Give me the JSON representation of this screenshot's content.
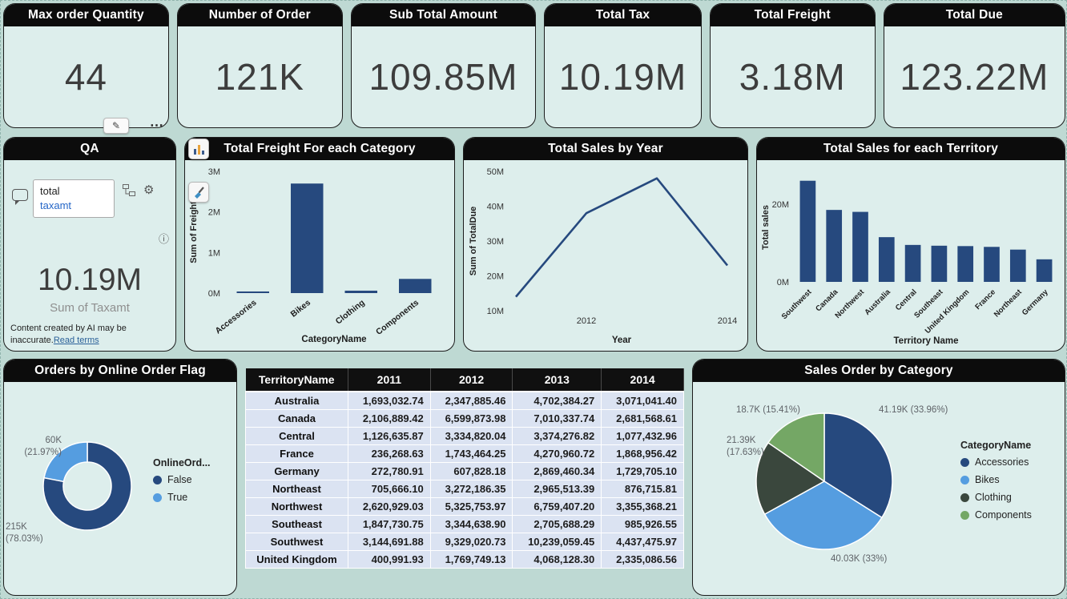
{
  "kpis": [
    {
      "title": "Max order Quantity",
      "value": "44"
    },
    {
      "title": "Number of Order",
      "value": "121K"
    },
    {
      "title": "Sub Total Amount",
      "value": "109.85M"
    },
    {
      "title": "Total Tax",
      "value": "10.19M"
    },
    {
      "title": "Total Freight",
      "value": "3.18M"
    },
    {
      "title": "Total Due",
      "value": "123.22M"
    }
  ],
  "qa": {
    "title": "QA",
    "query_line1": "total",
    "query_line2": "taxamt",
    "value": "10.19M",
    "value_label": "Sum of Taxamt",
    "disclaimer": "Content created by AI may be inaccurate.",
    "read_terms": "Read terms"
  },
  "colors": {
    "page_bg": "#bed9d3",
    "card_bg": "#ddeeec",
    "header_bg": "#0c0c0c",
    "navy": "#26497e",
    "light_blue": "#559de0",
    "green": "#74a765",
    "dark_sage": "#3a473d",
    "table_row": "#dbe3f2"
  },
  "chart_data": [
    {
      "id": "freight",
      "type": "bar",
      "title": "Total Freight For each Category",
      "categories": [
        "Accessories",
        "Bikes",
        "Clothing",
        "Components"
      ],
      "values": [
        0.04,
        2.7,
        0.06,
        0.35
      ],
      "unit": "M",
      "ylabel": "Sum of Freight",
      "xlabel": "CategoryName",
      "ylim": [
        0,
        3
      ],
      "yticks": [
        0,
        1,
        2,
        3
      ],
      "color": "#26497e"
    },
    {
      "id": "sales-year",
      "type": "line",
      "title": "Total Sales by Year",
      "x": [
        2011,
        2012,
        2013,
        2014
      ],
      "values": [
        14,
        38,
        48,
        23
      ],
      "unit": "M",
      "ylabel": "Sum of TotalDue",
      "xlabel": "Year",
      "ylim": [
        10,
        50
      ],
      "yticks": [
        10,
        20,
        30,
        40,
        50
      ],
      "xticks": [
        2012,
        2014
      ],
      "color": "#26497e"
    },
    {
      "id": "territory",
      "type": "bar",
      "title": "Total Sales for each Territory",
      "categories": [
        "Southwest",
        "Canada",
        "Northwest",
        "Australia",
        "Central",
        "Southeast",
        "United Kingdom",
        "France",
        "Northeast",
        "Germany"
      ],
      "values": [
        26,
        18.5,
        18,
        11.5,
        9.5,
        9.3,
        9.2,
        9,
        8.3,
        5.8
      ],
      "unit": "M",
      "ylabel": "Total sales",
      "xlabel": "Territory Name",
      "ylim": [
        0,
        28
      ],
      "yticks": [
        0,
        20
      ],
      "color": "#26497e"
    },
    {
      "id": "online-flag",
      "type": "pie",
      "title": "Orders by Online Order Flag",
      "donut": true,
      "legend_title": "OnlineOrd...",
      "slices": [
        {
          "label": "False",
          "pct": 78.03,
          "value_text": "215K",
          "pct_text": "(78.03%)",
          "color": "#26497e"
        },
        {
          "label": "True",
          "pct": 21.97,
          "value_text": "60K",
          "pct_text": "(21.97%)",
          "color": "#559de0"
        }
      ]
    },
    {
      "id": "category-pie",
      "type": "pie",
      "title": "Sales Order by Category",
      "legend_title": "CategoryName",
      "slices": [
        {
          "label": "Accessories",
          "pct": 33.96,
          "callout": "41.19K (33.96%)",
          "color": "#26497e"
        },
        {
          "label": "Bikes",
          "pct": 33.0,
          "callout": "40.03K (33%)",
          "color": "#559de0"
        },
        {
          "label": "Clothing",
          "pct": 17.63,
          "value_text": "21.39K",
          "pct_text": "(17.63%)",
          "color": "#3a473d"
        },
        {
          "label": "Components",
          "pct": 15.41,
          "callout": "18.7K (15.41%)",
          "color": "#74a765"
        }
      ]
    }
  ],
  "table": {
    "headers": [
      "TerritoryName",
      "2011",
      "2012",
      "2013",
      "2014"
    ],
    "rows": [
      [
        "Australia",
        "1,693,032.74",
        "2,347,885.46",
        "4,702,384.27",
        "3,071,041.40"
      ],
      [
        "Canada",
        "2,106,889.42",
        "6,599,873.98",
        "7,010,337.74",
        "2,681,568.61"
      ],
      [
        "Central",
        "1,126,635.87",
        "3,334,820.04",
        "3,374,276.82",
        "1,077,432.96"
      ],
      [
        "France",
        "236,268.63",
        "1,743,464.25",
        "4,270,960.72",
        "1,868,956.42"
      ],
      [
        "Germany",
        "272,780.91",
        "607,828.18",
        "2,869,460.34",
        "1,729,705.10"
      ],
      [
        "Northeast",
        "705,666.10",
        "3,272,186.35",
        "2,965,513.39",
        "876,715.81"
      ],
      [
        "Northwest",
        "2,620,929.03",
        "5,325,753.97",
        "6,759,407.20",
        "3,355,368.21"
      ],
      [
        "Southeast",
        "1,847,730.75",
        "3,344,638.90",
        "2,705,688.29",
        "985,926.55"
      ],
      [
        "Southwest",
        "3,144,691.88",
        "9,329,020.73",
        "10,239,059.45",
        "4,437,475.97"
      ],
      [
        "United Kingdom",
        "400,991.93",
        "1,769,749.13",
        "4,068,128.30",
        "2,335,086.56"
      ]
    ]
  }
}
